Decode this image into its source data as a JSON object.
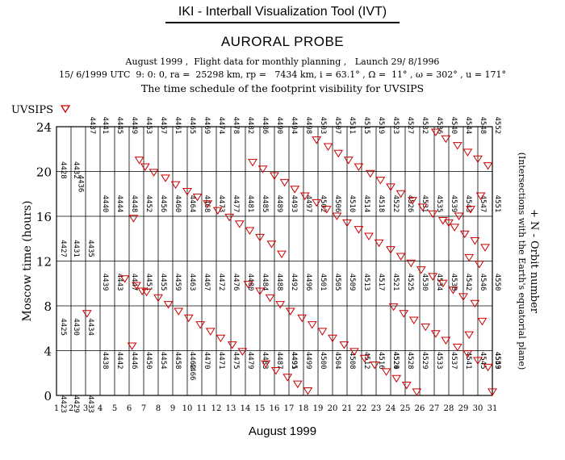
{
  "header": {
    "app_title": "IKI - Interball Visualization Tool (IVT)",
    "probe": "AURORAL PROBE",
    "line1": "August 1999 ,  Flight data for monthly planning ,   Launch 29/ 8/1996",
    "line2": "15/ 6/1999 UTC  9: 0: 0, ra =  25298 km, rp =   7434 km, i = 63.1° , Ω =  11° , ω = 302° , u = 171°",
    "line3": "The time schedule of the footprint visibility for UVSIPS"
  },
  "legend": {
    "label": "UVSIPS",
    "marker_color": "#cc0000"
  },
  "chart_data": {
    "type": "scatter",
    "xlabel": "August 1999",
    "ylabel": "Moscow time (hours)",
    "right_label_line1": "+ N - Orbit number",
    "right_label_line2": "(Intersections with the Earth's equatorial plane)",
    "xlim": [
      1,
      31
    ],
    "ylim": [
      0,
      24
    ],
    "x_ticks": [
      1,
      2,
      3,
      4,
      5,
      6,
      7,
      8,
      9,
      10,
      11,
      12,
      13,
      14,
      15,
      16,
      17,
      18,
      19,
      20,
      21,
      22,
      23,
      24,
      25,
      26,
      27,
      28,
      29,
      30,
      31
    ],
    "y_ticks": [
      0,
      4,
      8,
      12,
      16,
      20,
      24
    ],
    "grid": true,
    "orbit_labels": [
      {
        "n": 4423,
        "day": 1.1,
        "hour": 0
      },
      {
        "n": 4425,
        "day": 1.1,
        "hour": 6.9
      },
      {
        "n": 4427,
        "day": 1.1,
        "hour": 13.9
      },
      {
        "n": 4428,
        "day": 1.1,
        "hour": 20.9
      },
      {
        "n": 4429,
        "day": 2.0,
        "hour": 0
      },
      {
        "n": 4430,
        "day": 2.0,
        "hour": 6.9
      },
      {
        "n": 4431,
        "day": 2.0,
        "hour": 13.9
      },
      {
        "n": 4432,
        "day": 2.0,
        "hour": 20.9
      },
      {
        "n": 4433,
        "day": 3.0,
        "hour": 0
      },
      {
        "n": 4434,
        "day": 3.0,
        "hour": 6.9
      },
      {
        "n": 4435,
        "day": 3.0,
        "hour": 13.9
      },
      {
        "n": 4436,
        "day": 2.3,
        "hour": 19.7
      },
      {
        "n": 4437,
        "day": 3.1,
        "hour": 24.9
      },
      {
        "n": 4438,
        "day": 4.0,
        "hour": 3.9
      },
      {
        "n": 4439,
        "day": 4.0,
        "hour": 10.9
      },
      {
        "n": 4440,
        "day": 4.0,
        "hour": 17.9
      },
      {
        "n": 4441,
        "day": 4.0,
        "hour": 24.9
      },
      {
        "n": 4442,
        "day": 5.0,
        "hour": 3.9
      },
      {
        "n": 4443,
        "day": 5.0,
        "hour": 10.9
      },
      {
        "n": 4444,
        "day": 5.0,
        "hour": 17.9
      },
      {
        "n": 4445,
        "day": 5.0,
        "hour": 24.9
      },
      {
        "n": 4446,
        "day": 6.0,
        "hour": 3.9
      },
      {
        "n": 4447,
        "day": 6.0,
        "hour": 10.9
      },
      {
        "n": 4448,
        "day": 6.0,
        "hour": 17.9
      },
      {
        "n": 4449,
        "day": 6.0,
        "hour": 24.9
      },
      {
        "n": 4450,
        "day": 7.0,
        "hour": 3.9
      },
      {
        "n": 4451,
        "day": 7.0,
        "hour": 10.9
      },
      {
        "n": 4452,
        "day": 7.0,
        "hour": 17.9
      },
      {
        "n": 4453,
        "day": 7.0,
        "hour": 24.9
      },
      {
        "n": 4454,
        "day": 8.0,
        "hour": 3.9
      },
      {
        "n": 4455,
        "day": 8.0,
        "hour": 10.9
      },
      {
        "n": 4456,
        "day": 8.0,
        "hour": 17.9
      },
      {
        "n": 4457,
        "day": 8.0,
        "hour": 24.9
      },
      {
        "n": 4458,
        "day": 9.0,
        "hour": 3.9
      },
      {
        "n": 4459,
        "day": 9.0,
        "hour": 10.9
      },
      {
        "n": 4460,
        "day": 9.0,
        "hour": 17.9
      },
      {
        "n": 4461,
        "day": 9.0,
        "hour": 24.9
      },
      {
        "n": 4462,
        "day": 10.0,
        "hour": 3.9
      },
      {
        "n": 4463,
        "day": 10.0,
        "hour": 10.9
      },
      {
        "n": 4464,
        "day": 10.0,
        "hour": 17.9
      },
      {
        "n": 4465,
        "day": 10.0,
        "hour": 24.9
      },
      {
        "n": 4466,
        "day": 10.0,
        "hour": 2.9
      },
      {
        "n": 4467,
        "day": 11.0,
        "hour": 10.9
      },
      {
        "n": 4468,
        "day": 11.0,
        "hour": 17.9
      },
      {
        "n": 4469,
        "day": 11.0,
        "hour": 24.9
      },
      {
        "n": 4470,
        "day": 11.0,
        "hour": 3.9
      },
      {
        "n": 4471,
        "day": 12.0,
        "hour": 3.9
      },
      {
        "n": 4472,
        "day": 12.0,
        "hour": 10.9
      },
      {
        "n": 4473,
        "day": 12.0,
        "hour": 17.9
      },
      {
        "n": 4474,
        "day": 12.0,
        "hour": 24.9
      },
      {
        "n": 4475,
        "day": 13.0,
        "hour": 3.9
      },
      {
        "n": 4476,
        "day": 13.0,
        "hour": 10.9
      },
      {
        "n": 4477,
        "day": 13.0,
        "hour": 17.9
      },
      {
        "n": 4478,
        "day": 13.0,
        "hour": 24.9
      },
      {
        "n": 4479,
        "day": 14.0,
        "hour": 3.9
      },
      {
        "n": 4480,
        "day": 14.0,
        "hour": 10.9
      },
      {
        "n": 4481,
        "day": 14.0,
        "hour": 17.9
      },
      {
        "n": 4482,
        "day": 14.0,
        "hour": 24.9
      },
      {
        "n": 4483,
        "day": 15.0,
        "hour": 3.9
      },
      {
        "n": 4484,
        "day": 15.0,
        "hour": 10.9
      },
      {
        "n": 4485,
        "day": 15.0,
        "hour": 17.9
      },
      {
        "n": 4486,
        "day": 15.0,
        "hour": 24.9
      },
      {
        "n": 4487,
        "day": 16.0,
        "hour": 3.9
      },
      {
        "n": 4488,
        "day": 16.0,
        "hour": 10.9
      },
      {
        "n": 4489,
        "day": 16.0,
        "hour": 17.9
      },
      {
        "n": 4490,
        "day": 16.0,
        "hour": 24.9
      },
      {
        "n": 4491,
        "day": 17.0,
        "hour": 3.9
      },
      {
        "n": 4492,
        "day": 17.0,
        "hour": 10.9
      },
      {
        "n": 4493,
        "day": 17.0,
        "hour": 17.9
      },
      {
        "n": 4494,
        "day": 17.0,
        "hour": 24.9
      },
      {
        "n": 4495,
        "day": 17.0,
        "hour": 3.9
      },
      {
        "n": 4496,
        "day": 18.0,
        "hour": 10.9
      },
      {
        "n": 4497,
        "day": 18.0,
        "hour": 17.9
      },
      {
        "n": 4498,
        "day": 18.0,
        "hour": 24.9
      },
      {
        "n": 4499,
        "day": 18.0,
        "hour": 3.9
      },
      {
        "n": 4500,
        "day": 19.0,
        "hour": 3.9
      },
      {
        "n": 4501,
        "day": 19.0,
        "hour": 10.9
      },
      {
        "n": 4502,
        "day": 19.0,
        "hour": 17.9
      },
      {
        "n": 4503,
        "day": 19.0,
        "hour": 24.9
      },
      {
        "n": 4504,
        "day": 20.0,
        "hour": 3.9
      },
      {
        "n": 4505,
        "day": 20.0,
        "hour": 10.9
      },
      {
        "n": 4506,
        "day": 20.0,
        "hour": 17.9
      },
      {
        "n": 4507,
        "day": 20.0,
        "hour": 24.9
      },
      {
        "n": 4508,
        "day": 21.0,
        "hour": 3.9
      },
      {
        "n": 4509,
        "day": 21.0,
        "hour": 10.9
      },
      {
        "n": 4510,
        "day": 21.0,
        "hour": 17.9
      },
      {
        "n": 4511,
        "day": 21.0,
        "hour": 24.9
      },
      {
        "n": 4512,
        "day": 22.0,
        "hour": 3.9
      },
      {
        "n": 4513,
        "day": 22.0,
        "hour": 10.9
      },
      {
        "n": 4514,
        "day": 22.0,
        "hour": 17.9
      },
      {
        "n": 4515,
        "day": 22.0,
        "hour": 24.9
      },
      {
        "n": 4516,
        "day": 23.0,
        "hour": 3.9
      },
      {
        "n": 4517,
        "day": 23.0,
        "hour": 10.9
      },
      {
        "n": 4518,
        "day": 23.0,
        "hour": 17.9
      },
      {
        "n": 4519,
        "day": 23.0,
        "hour": 24.9
      },
      {
        "n": 4520,
        "day": 24.0,
        "hour": 3.9
      },
      {
        "n": 4521,
        "day": 24.0,
        "hour": 10.9
      },
      {
        "n": 4522,
        "day": 24.0,
        "hour": 17.9
      },
      {
        "n": 4523,
        "day": 24.0,
        "hour": 24.9
      },
      {
        "n": 4524,
        "day": 24.0,
        "hour": 3.9
      },
      {
        "n": 4525,
        "day": 25.0,
        "hour": 10.9
      },
      {
        "n": 4526,
        "day": 25.0,
        "hour": 17.9
      },
      {
        "n": 4527,
        "day": 25.0,
        "hour": 24.9
      },
      {
        "n": 4528,
        "day": 25.0,
        "hour": 3.9
      },
      {
        "n": 4529,
        "day": 26.0,
        "hour": 3.9
      },
      {
        "n": 4530,
        "day": 26.0,
        "hour": 10.9
      },
      {
        "n": 4531,
        "day": 26.0,
        "hour": 17.9
      },
      {
        "n": 4532,
        "day": 26.0,
        "hour": 24.9
      },
      {
        "n": 4533,
        "day": 27.0,
        "hour": 3.9
      },
      {
        "n": 4534,
        "day": 27.0,
        "hour": 10.9
      },
      {
        "n": 4535,
        "day": 27.0,
        "hour": 17.9
      },
      {
        "n": 4536,
        "day": 27.0,
        "hour": 24.9
      },
      {
        "n": 4537,
        "day": 28.0,
        "hour": 3.9
      },
      {
        "n": 4538,
        "day": 28.0,
        "hour": 10.9
      },
      {
        "n": 4539,
        "day": 28.0,
        "hour": 17.9
      },
      {
        "n": 4540,
        "day": 28.0,
        "hour": 24.9
      },
      {
        "n": 4541,
        "day": 29.0,
        "hour": 3.9
      },
      {
        "n": 4542,
        "day": 29.0,
        "hour": 10.9
      },
      {
        "n": 4543,
        "day": 29.0,
        "hour": 17.9
      },
      {
        "n": 4544,
        "day": 29.0,
        "hour": 24.9
      },
      {
        "n": 4545,
        "day": 30.0,
        "hour": 3.9
      },
      {
        "n": 4546,
        "day": 30.0,
        "hour": 10.9
      },
      {
        "n": 4547,
        "day": 30.0,
        "hour": 17.9
      },
      {
        "n": 4548,
        "day": 30.0,
        "hour": 24.9
      },
      {
        "n": 4549,
        "day": 31.0,
        "hour": 3.9
      },
      {
        "n": 4550,
        "day": 31.0,
        "hour": 10.9
      },
      {
        "n": 4551,
        "day": 31.0,
        "hour": 17.9
      },
      {
        "n": 4552,
        "day": 31.0,
        "hour": 24.9
      },
      {
        "n": 4553,
        "day": 31.0,
        "hour": 3.9
      }
    ],
    "visibility_markers": [
      {
        "day": 3.1,
        "hour": 7.3
      },
      {
        "day": 6.2,
        "hour": 4.4
      },
      {
        "day": 6.7,
        "hour": 21.0
      },
      {
        "day": 7.1,
        "hour": 20.4
      },
      {
        "day": 6.3,
        "hour": 15.8
      },
      {
        "day": 6.9,
        "hour": 9.3
      },
      {
        "day": 7.7,
        "hour": 19.9
      },
      {
        "day": 8.5,
        "hour": 19.4
      },
      {
        "day": 9.2,
        "hour": 18.8
      },
      {
        "day": 10.0,
        "hour": 18.2
      },
      {
        "day": 10.7,
        "hour": 17.7
      },
      {
        "day": 11.4,
        "hour": 17.1
      },
      {
        "day": 12.1,
        "hour": 16.5
      },
      {
        "day": 12.9,
        "hour": 15.9
      },
      {
        "day": 13.6,
        "hour": 15.3
      },
      {
        "day": 14.3,
        "hour": 14.7
      },
      {
        "day": 15.0,
        "hour": 14.1
      },
      {
        "day": 15.8,
        "hour": 13.5
      },
      {
        "day": 5.7,
        "hour": 10.4
      },
      {
        "day": 6.5,
        "hour": 9.8
      },
      {
        "day": 7.2,
        "hour": 9.2
      },
      {
        "day": 8.0,
        "hour": 8.7
      },
      {
        "day": 8.7,
        "hour": 8.1
      },
      {
        "day": 9.4,
        "hour": 7.5
      },
      {
        "day": 10.1,
        "hour": 6.9
      },
      {
        "day": 10.9,
        "hour": 6.3
      },
      {
        "day": 11.6,
        "hour": 5.7
      },
      {
        "day": 12.3,
        "hour": 5.1
      },
      {
        "day": 13.1,
        "hour": 4.5
      },
      {
        "day": 13.8,
        "hour": 3.9
      },
      {
        "day": 14.5,
        "hour": 20.8
      },
      {
        "day": 15.2,
        "hour": 20.2
      },
      {
        "day": 16.0,
        "hour": 19.6
      },
      {
        "day": 16.7,
        "hour": 19.0
      },
      {
        "day": 17.4,
        "hour": 18.4
      },
      {
        "day": 18.1,
        "hour": 17.8
      },
      {
        "day": 18.9,
        "hour": 17.2
      },
      {
        "day": 19.6,
        "hour": 16.6
      },
      {
        "day": 20.3,
        "hour": 16.0
      },
      {
        "day": 21.0,
        "hour": 15.4
      },
      {
        "day": 21.8,
        "hour": 14.8
      },
      {
        "day": 22.5,
        "hour": 14.2
      },
      {
        "day": 23.2,
        "hour": 13.6
      },
      {
        "day": 24.0,
        "hour": 13.0
      },
      {
        "day": 24.7,
        "hour": 12.4
      },
      {
        "day": 25.4,
        "hour": 11.8
      },
      {
        "day": 26.1,
        "hour": 11.2
      },
      {
        "day": 26.9,
        "hour": 10.6
      },
      {
        "day": 27.6,
        "hour": 10.0
      },
      {
        "day": 28.3,
        "hour": 9.4
      },
      {
        "day": 29.0,
        "hour": 8.8
      },
      {
        "day": 29.8,
        "hour": 8.2
      },
      {
        "day": 14.2,
        "hour": 9.9
      },
      {
        "day": 15.0,
        "hour": 9.3
      },
      {
        "day": 15.7,
        "hour": 8.7
      },
      {
        "day": 16.4,
        "hour": 8.1
      },
      {
        "day": 17.1,
        "hour": 7.5
      },
      {
        "day": 17.9,
        "hour": 6.9
      },
      {
        "day": 18.6,
        "hour": 6.3
      },
      {
        "day": 19.3,
        "hour": 5.7
      },
      {
        "day": 20.0,
        "hour": 5.1
      },
      {
        "day": 20.8,
        "hour": 4.5
      },
      {
        "day": 21.5,
        "hour": 3.9
      },
      {
        "day": 22.2,
        "hour": 3.3
      },
      {
        "day": 22.9,
        "hour": 2.7
      },
      {
        "day": 23.7,
        "hour": 2.1
      },
      {
        "day": 24.4,
        "hour": 1.5
      },
      {
        "day": 25.1,
        "hour": 0.9
      },
      {
        "day": 25.8,
        "hour": 0.3
      },
      {
        "day": 15.4,
        "hour": 2.8
      },
      {
        "day": 16.1,
        "hour": 2.2
      },
      {
        "day": 16.9,
        "hour": 1.6
      },
      {
        "day": 17.6,
        "hour": 1.0
      },
      {
        "day": 18.3,
        "hour": 0.4
      },
      {
        "day": 18.9,
        "hour": 22.8
      },
      {
        "day": 19.7,
        "hour": 22.2
      },
      {
        "day": 20.4,
        "hour": 21.6
      },
      {
        "day": 21.1,
        "hour": 21.0
      },
      {
        "day": 21.8,
        "hour": 20.4
      },
      {
        "day": 22.6,
        "hour": 19.8
      },
      {
        "day": 23.3,
        "hour": 19.2
      },
      {
        "day": 24.0,
        "hour": 18.6
      },
      {
        "day": 24.7,
        "hour": 18.0
      },
      {
        "day": 25.5,
        "hour": 17.4
      },
      {
        "day": 26.2,
        "hour": 16.8
      },
      {
        "day": 26.9,
        "hour": 16.2
      },
      {
        "day": 27.6,
        "hour": 15.6
      },
      {
        "day": 28.4,
        "hour": 15.0
      },
      {
        "day": 29.1,
        "hour": 14.4
      },
      {
        "day": 29.8,
        "hour": 13.8
      },
      {
        "day": 30.5,
        "hour": 13.2
      },
      {
        "day": 24.2,
        "hour": 7.9
      },
      {
        "day": 24.9,
        "hour": 7.3
      },
      {
        "day": 25.6,
        "hour": 6.7
      },
      {
        "day": 26.4,
        "hour": 6.1
      },
      {
        "day": 27.1,
        "hour": 5.5
      },
      {
        "day": 27.8,
        "hour": 4.9
      },
      {
        "day": 28.6,
        "hour": 4.3
      },
      {
        "day": 29.3,
        "hour": 3.7
      },
      {
        "day": 30.0,
        "hour": 3.1
      },
      {
        "day": 30.7,
        "hour": 2.5
      },
      {
        "day": 31.0,
        "hour": 0.3
      },
      {
        "day": 27.1,
        "hour": 23.5
      },
      {
        "day": 27.8,
        "hour": 22.9
      },
      {
        "day": 28.6,
        "hour": 22.3
      },
      {
        "day": 29.3,
        "hour": 21.7
      },
      {
        "day": 30.0,
        "hour": 21.1
      },
      {
        "day": 30.7,
        "hour": 20.5
      },
      {
        "day": 30.2,
        "hour": 17.8
      },
      {
        "day": 29.5,
        "hour": 16.6
      },
      {
        "day": 28.7,
        "hour": 16.0
      },
      {
        "day": 28.0,
        "hour": 15.4
      },
      {
        "day": 29.4,
        "hour": 12.3
      },
      {
        "day": 30.1,
        "hour": 11.7
      },
      {
        "day": 30.3,
        "hour": 6.6
      },
      {
        "day": 29.4,
        "hour": 5.4
      },
      {
        "day": 16.5,
        "hour": 12.6
      }
    ]
  }
}
